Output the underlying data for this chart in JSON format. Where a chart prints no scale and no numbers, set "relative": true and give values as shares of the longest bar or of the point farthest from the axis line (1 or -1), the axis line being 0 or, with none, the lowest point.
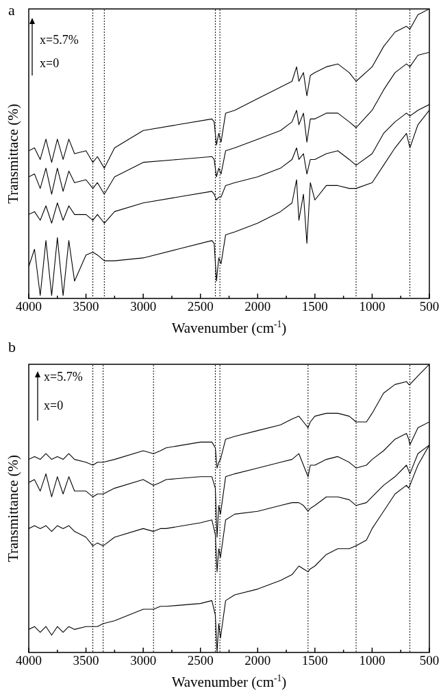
{
  "chart_data": [
    {
      "type": "line",
      "relative": true,
      "xlabel": "Wavenumber (cm$^{-1}$)",
      "ylabel": "Transmittace (%)",
      "xlim": [
        4000,
        500
      ],
      "xticks": [
        4000,
        {
          "value": 3750,
          "label": null
        },
        3500,
        {
          "value": 3250,
          "label": null
        },
        3000,
        {
          "value": 2750,
          "label": null
        },
        2500,
        {
          "value": 2250,
          "label": null
        },
        2000,
        {
          "value": 1750,
          "label": null
        },
        1500,
        {
          "value": 1250,
          "label": null
        },
        1000,
        {
          "value": 750,
          "label": null
        },
        500
      ],
      "marker": "none",
      "legend": false,
      "annotations": [
        "a",
        "x=5.7%",
        "x=0"
      ],
      "x": [
        4000,
        3950,
        3900,
        3850,
        3800,
        3750,
        3700,
        3650,
        3600,
        3500,
        3440,
        3400,
        3340,
        3250,
        3000,
        2700,
        2400,
        2380,
        2360,
        2340,
        2320,
        2280,
        2200,
        2000,
        1800,
        1700,
        1660,
        1640,
        1600,
        1570,
        1540,
        1500,
        1400,
        1300,
        1200,
        1140,
        1000,
        900,
        800,
        700,
        670,
        600,
        500
      ],
      "ref_lines": [
        {
          "axis": "x",
          "value": 3440,
          "line_style": "dotted",
          "color": "#000000"
        },
        {
          "axis": "x",
          "value": 3340,
          "line_style": "dotted",
          "color": "#000000"
        },
        {
          "axis": "x",
          "value": 2370,
          "line_style": "dotted",
          "color": "#000000"
        },
        {
          "axis": "x",
          "value": 2330,
          "line_style": "dotted",
          "color": "#000000"
        },
        {
          "axis": "x",
          "value": 1140,
          "line_style": "dotted",
          "color": "#000000"
        },
        {
          "axis": "x",
          "value": 670,
          "line_style": "dotted",
          "color": "#000000"
        }
      ],
      "series": [
        {
          "color": "#000000",
          "values": [
            0.51,
            0.52,
            0.48,
            0.55,
            0.47,
            0.55,
            0.48,
            0.55,
            0.5,
            0.51,
            0.47,
            0.49,
            0.45,
            0.52,
            0.58,
            0.6,
            0.62,
            0.61,
            0.53,
            0.57,
            0.54,
            0.64,
            0.65,
            0.69,
            0.73,
            0.75,
            0.8,
            0.75,
            0.78,
            0.7,
            0.77,
            0.78,
            0.8,
            0.81,
            0.78,
            0.75,
            0.8,
            0.87,
            0.92,
            0.94,
            0.93,
            0.98,
            1
          ]
        },
        {
          "color": "#000000",
          "values": [
            0.42,
            0.43,
            0.38,
            0.45,
            0.36,
            0.45,
            0.37,
            0.44,
            0.4,
            0.41,
            0.38,
            0.4,
            0.36,
            0.42,
            0.47,
            0.48,
            0.49,
            0.48,
            0.42,
            0.45,
            0.43,
            0.51,
            0.52,
            0.55,
            0.58,
            0.61,
            0.65,
            0.6,
            0.64,
            0.54,
            0.62,
            0.62,
            0.64,
            0.64,
            0.61,
            0.59,
            0.65,
            0.72,
            0.78,
            0.81,
            0.8,
            0.84,
            0.85
          ]
        },
        {
          "color": "#000000",
          "values": [
            0.29,
            0.3,
            0.27,
            0.32,
            0.26,
            0.33,
            0.27,
            0.32,
            0.29,
            0.29,
            0.27,
            0.29,
            0.26,
            0.3,
            0.33,
            0.35,
            0.37,
            0.36,
            0.34,
            0.35,
            0.35,
            0.39,
            0.4,
            0.42,
            0.45,
            0.48,
            0.52,
            0.48,
            0.5,
            0.43,
            0.48,
            0.48,
            0.5,
            0.51,
            0.48,
            0.46,
            0.5,
            0.57,
            0.61,
            0.64,
            0.63,
            0.65,
            0.67
          ]
        },
        {
          "color": "#000000",
          "values": [
            0.11,
            0.17,
            0.01,
            0.2,
            0.01,
            0.21,
            0.01,
            0.2,
            0.06,
            0.15,
            0.16,
            0.15,
            0.13,
            0.13,
            0.14,
            0.17,
            0.2,
            0.19,
            0.06,
            0.14,
            0.12,
            0.22,
            0.23,
            0.26,
            0.3,
            0.33,
            0.41,
            0.27,
            0.36,
            0.19,
            0.4,
            0.34,
            0.39,
            0.39,
            0.38,
            0.38,
            0.4,
            0.46,
            0.52,
            0.57,
            0.52,
            0.6,
            0.65
          ]
        }
      ]
    },
    {
      "type": "line",
      "relative": true,
      "xlabel": "Wavenumber (cm$^{-1}$)",
      "ylabel": "Transmittance (%)",
      "xlim": [
        4000,
        500
      ],
      "xticks": [
        4000,
        {
          "value": 3750,
          "label": null
        },
        3500,
        {
          "value": 3250,
          "label": null
        },
        3000,
        {
          "value": 2750,
          "label": null
        },
        2500,
        {
          "value": 2250,
          "label": null
        },
        2000,
        {
          "value": 1750,
          "label": null
        },
        1500,
        {
          "value": 1250,
          "label": null
        },
        1000,
        {
          "value": 750,
          "label": null
        },
        500
      ],
      "marker": "none",
      "legend": false,
      "annotations": [
        "b",
        "x=5.7%",
        "x=0"
      ],
      "x": [
        4000,
        3950,
        3900,
        3850,
        3800,
        3750,
        3700,
        3650,
        3600,
        3500,
        3440,
        3400,
        3350,
        3250,
        3000,
        2910,
        2850,
        2800,
        2500,
        2400,
        2370,
        2355,
        2340,
        2325,
        2280,
        2200,
        2000,
        1800,
        1700,
        1640,
        1600,
        1560,
        1540,
        1500,
        1400,
        1300,
        1200,
        1140,
        1050,
        1000,
        900,
        800,
        700,
        680,
        670,
        600,
        500
      ],
      "ref_lines": [
        {
          "axis": "x",
          "value": 3440,
          "line_style": "dotted",
          "color": "#000000"
        },
        {
          "axis": "x",
          "value": 3350,
          "line_style": "dotted",
          "color": "#000000"
        },
        {
          "axis": "x",
          "value": 2910,
          "line_style": "dotted",
          "color": "#000000"
        },
        {
          "axis": "x",
          "value": 2370,
          "line_style": "dotted",
          "color": "#000000"
        },
        {
          "axis": "x",
          "value": 2330,
          "line_style": "dotted",
          "color": "#000000"
        },
        {
          "axis": "x",
          "value": 1560,
          "line_style": "dotted",
          "color": "#000000"
        },
        {
          "axis": "x",
          "value": 1140,
          "line_style": "dotted",
          "color": "#000000"
        },
        {
          "axis": "x",
          "value": 670,
          "line_style": "dotted",
          "color": "#000000"
        }
      ],
      "series": [
        {
          "color": "#000000",
          "values": [
            0.67,
            0.68,
            0.67,
            0.69,
            0.67,
            0.68,
            0.67,
            0.69,
            0.67,
            0.66,
            0.65,
            0.66,
            0.66,
            0.67,
            0.7,
            0.69,
            0.7,
            0.71,
            0.73,
            0.73,
            0.71,
            0.64,
            0.66,
            0.67,
            0.74,
            0.75,
            0.77,
            0.79,
            0.81,
            0.82,
            0.8,
            0.78,
            0.8,
            0.82,
            0.83,
            0.83,
            0.82,
            0.8,
            0.8,
            0.83,
            0.9,
            0.93,
            0.94,
            0.93,
            0.93,
            0.96,
            1
          ]
        },
        {
          "color": "#000000",
          "values": [
            0.59,
            0.6,
            0.56,
            0.62,
            0.54,
            0.61,
            0.55,
            0.61,
            0.56,
            0.56,
            0.54,
            0.55,
            0.55,
            0.57,
            0.6,
            0.58,
            0.59,
            0.6,
            0.61,
            0.61,
            0.57,
            0.4,
            0.51,
            0.48,
            0.61,
            0.62,
            0.64,
            0.66,
            0.67,
            0.69,
            0.65,
            0.61,
            0.65,
            0.65,
            0.67,
            0.68,
            0.66,
            0.64,
            0.65,
            0.67,
            0.7,
            0.74,
            0.76,
            0.74,
            0.72,
            0.78,
            0.8
          ]
        },
        {
          "color": "#000000",
          "values": [
            0.43,
            0.44,
            0.43,
            0.44,
            0.42,
            0.44,
            0.43,
            0.44,
            0.42,
            0.4,
            0.37,
            0.38,
            0.37,
            0.4,
            0.43,
            0.42,
            0.43,
            0.43,
            0.45,
            0.46,
            0.41,
            0.28,
            0.36,
            0.33,
            0.46,
            0.48,
            0.49,
            0.51,
            0.52,
            0.52,
            0.51,
            0.49,
            0.5,
            0.51,
            0.54,
            0.54,
            0.53,
            0.51,
            0.52,
            0.54,
            0.58,
            0.61,
            0.65,
            0.63,
            0.62,
            0.69,
            0.72
          ]
        },
        {
          "color": "#000000",
          "values": [
            0.08,
            0.09,
            0.07,
            0.09,
            0.06,
            0.09,
            0.07,
            0.09,
            0.08,
            0.09,
            0.09,
            0.09,
            0.1,
            0.11,
            0.15,
            0.15,
            0.16,
            0.16,
            0.17,
            0.18,
            0.13,
            0,
            0.1,
            0.05,
            0.18,
            0.2,
            0.22,
            0.25,
            0.27,
            0.3,
            0.29,
            0.28,
            0.29,
            0.3,
            0.34,
            0.36,
            0.36,
            0.37,
            0.39,
            0.43,
            0.49,
            0.55,
            0.58,
            0.57,
            0.58,
            0.65,
            0.72
          ]
        }
      ]
    }
  ]
}
